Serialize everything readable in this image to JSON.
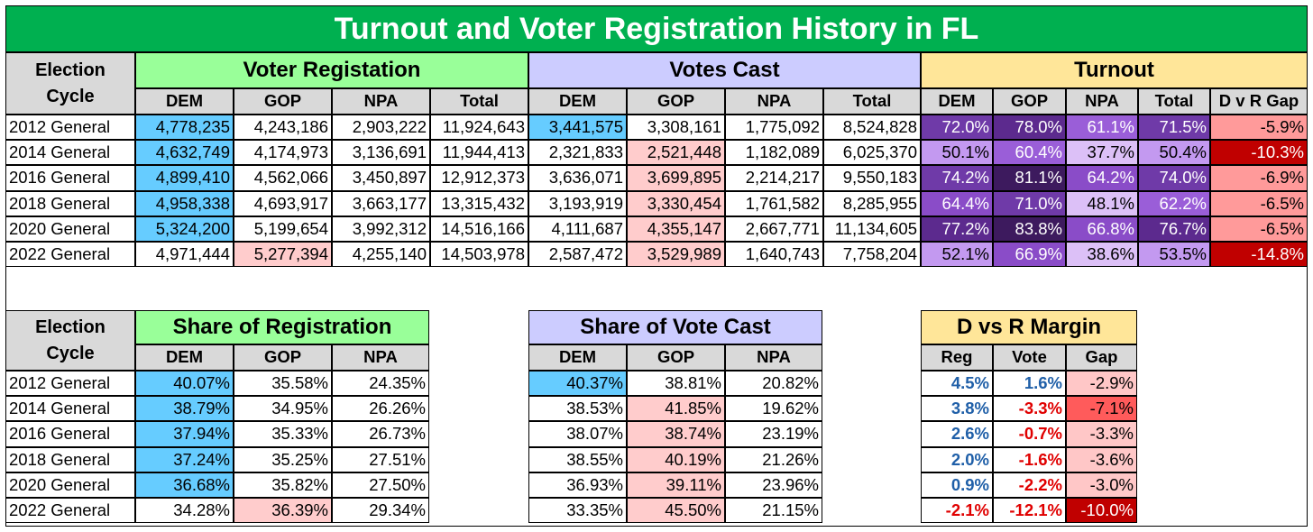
{
  "title": "Turnout and Voter Registration History in FL",
  "election_cycle_label": [
    "Election",
    "Cycle"
  ],
  "groups": {
    "voter_registration": "Voter Registation",
    "votes_cast": "Votes Cast",
    "turnout": "Turnout",
    "share_registration": "Share of Registration",
    "share_vote": "Share of Vote Cast",
    "margin": "D vs R Margin"
  },
  "subheaders": {
    "four": [
      "DEM",
      "GOP",
      "NPA",
      "Total"
    ],
    "turnout": [
      "DEM",
      "GOP",
      "NPA",
      "Total",
      "D v R Gap"
    ],
    "three": [
      "DEM",
      "GOP",
      "NPA"
    ],
    "margin": [
      "Reg",
      "Vote",
      "Gap"
    ]
  },
  "rows_top": [
    {
      "cycle": "2012 General",
      "reg": [
        "4,778,235",
        "4,243,186",
        "2,903,222",
        "11,924,643"
      ],
      "votes": [
        "3,441,575",
        "3,308,161",
        "1,775,092",
        "8,524,828"
      ],
      "turnout": [
        "72.0%",
        "78.0%",
        "61.1%",
        "71.5%",
        "-5.9%"
      ]
    },
    {
      "cycle": "2014 General",
      "reg": [
        "4,632,749",
        "4,174,973",
        "3,136,691",
        "11,944,413"
      ],
      "votes": [
        "2,321,833",
        "2,521,448",
        "1,182,089",
        "6,025,370"
      ],
      "turnout": [
        "50.1%",
        "60.4%",
        "37.7%",
        "50.4%",
        "-10.3%"
      ]
    },
    {
      "cycle": "2016 General",
      "reg": [
        "4,899,410",
        "4,562,066",
        "3,450,897",
        "12,912,373"
      ],
      "votes": [
        "3,636,071",
        "3,699,895",
        "2,214,217",
        "9,550,183"
      ],
      "turnout": [
        "74.2%",
        "81.1%",
        "64.2%",
        "74.0%",
        "-6.9%"
      ]
    },
    {
      "cycle": "2018 General",
      "reg": [
        "4,958,338",
        "4,693,917",
        "3,663,177",
        "13,315,432"
      ],
      "votes": [
        "3,193,919",
        "3,330,454",
        "1,761,582",
        "8,285,955"
      ],
      "turnout": [
        "64.4%",
        "71.0%",
        "48.1%",
        "62.2%",
        "-6.5%"
      ]
    },
    {
      "cycle": "2020 General",
      "reg": [
        "5,324,200",
        "5,199,654",
        "3,992,312",
        "14,516,166"
      ],
      "votes": [
        "4,111,687",
        "4,355,147",
        "2,667,771",
        "11,134,605"
      ],
      "turnout": [
        "77.2%",
        "83.8%",
        "66.8%",
        "76.7%",
        "-6.5%"
      ]
    },
    {
      "cycle": "2022 General",
      "reg": [
        "4,971,444",
        "5,277,394",
        "4,255,140",
        "14,503,978"
      ],
      "votes": [
        "2,587,472",
        "3,529,989",
        "1,640,743",
        "7,758,204"
      ],
      "turnout": [
        "52.1%",
        "66.9%",
        "38.6%",
        "53.5%",
        "-14.8%"
      ]
    }
  ],
  "rows_bottom": [
    {
      "cycle": "2012 General",
      "share_reg": [
        "40.07%",
        "35.58%",
        "24.35%"
      ],
      "share_vote": [
        "40.37%",
        "38.81%",
        "20.82%"
      ],
      "margin": [
        "4.5%",
        "1.6%",
        "-2.9%"
      ]
    },
    {
      "cycle": "2014 General",
      "share_reg": [
        "38.79%",
        "34.95%",
        "26.26%"
      ],
      "share_vote": [
        "38.53%",
        "41.85%",
        "19.62%"
      ],
      "margin": [
        "3.8%",
        "-3.3%",
        "-7.1%"
      ]
    },
    {
      "cycle": "2016 General",
      "share_reg": [
        "37.94%",
        "35.33%",
        "26.73%"
      ],
      "share_vote": [
        "38.07%",
        "38.74%",
        "23.19%"
      ],
      "margin": [
        "2.6%",
        "-0.7%",
        "-3.3%"
      ]
    },
    {
      "cycle": "2018 General",
      "share_reg": [
        "37.24%",
        "35.25%",
        "27.51%"
      ],
      "share_vote": [
        "38.55%",
        "40.19%",
        "21.26%"
      ],
      "margin": [
        "2.0%",
        "-1.6%",
        "-3.6%"
      ]
    },
    {
      "cycle": "2020 General",
      "share_reg": [
        "36.68%",
        "35.82%",
        "27.50%"
      ],
      "share_vote": [
        "36.93%",
        "39.11%",
        "23.96%"
      ],
      "margin": [
        "0.9%",
        "-2.2%",
        "-3.0%"
      ]
    },
    {
      "cycle": "2022 General",
      "share_reg": [
        "34.28%",
        "36.39%",
        "29.34%"
      ],
      "share_vote": [
        "33.35%",
        "45.50%",
        "21.15%"
      ],
      "margin": [
        "-2.1%",
        "-12.1%",
        "-10.0%"
      ]
    }
  ],
  "colors": {
    "title_green": "#00b050",
    "reg_header_green": "#99ff99",
    "votes_header_purple": "#ccccff",
    "turnout_header_yellow": "#ffe699",
    "header_gray": "#d9d9d9",
    "dem_blue": "#66ccff",
    "gop_pink": "#ffcccc",
    "positive_blue": "#1f5fa8",
    "negative_red": "#e00000"
  }
}
